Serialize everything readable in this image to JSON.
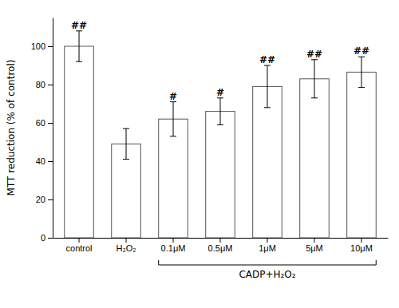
{
  "chart_data": {
    "type": "bar",
    "categories": [
      "control",
      "H₂O₂",
      "0.1μM",
      "0.5μM",
      "1μM",
      "5μM",
      "10μM"
    ],
    "values": [
      100,
      49,
      62,
      66,
      79,
      83,
      86.5
    ],
    "errors": [
      8,
      8,
      9,
      7,
      11,
      10,
      8
    ],
    "significance": [
      "##",
      null,
      "#",
      "#",
      "##",
      "##",
      "##"
    ],
    "color": "white",
    "ylabel": "MTT reduction (% of control)",
    "annotations": [
      {
        "text": "CADP+H₂O₂",
        "categories": [
          "0.1μM",
          "10μM"
        ]
      }
    ],
    "ylim": [
      0,
      115
    ],
    "yticks": [
      0,
      20,
      40,
      60,
      80,
      100
    ]
  }
}
